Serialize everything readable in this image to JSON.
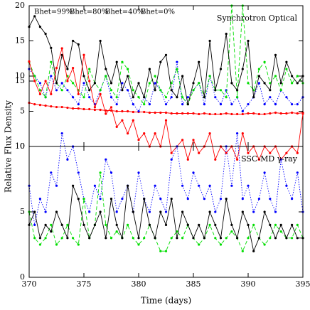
{
  "chart_data": [
    {
      "type": "line",
      "title": "Synchrotron Optical",
      "x": [
        370,
        370.5,
        371,
        371.5,
        372,
        372.5,
        373,
        373.5,
        374,
        374.5,
        375,
        375.5,
        376,
        376.5,
        377,
        377.5,
        378,
        378.5,
        379,
        379.5,
        380,
        380.5,
        381,
        381.5,
        382,
        382.5,
        383,
        383.5,
        384,
        384.5,
        385,
        385.5,
        386,
        386.5,
        387,
        387.5,
        388,
        388.5,
        389,
        389.5,
        390,
        390.5,
        391,
        391.5,
        392,
        392.5,
        393,
        393.5,
        394,
        394.5,
        395
      ],
      "series": [
        {
          "name": "Bhet=99%",
          "color": "#ff0000",
          "dash": "solid",
          "values": [
            6.2,
            6.0,
            5.9,
            5.8,
            5.7,
            5.6,
            5.6,
            5.5,
            5.4,
            5.4,
            5.3,
            5.3,
            5.2,
            5.2,
            5.1,
            5.1,
            5.0,
            5.0,
            5.0,
            4.9,
            4.9,
            4.9,
            4.8,
            4.8,
            4.8,
            4.8,
            4.7,
            4.7,
            4.7,
            4.7,
            4.7,
            4.6,
            4.7,
            4.6,
            4.6,
            4.6,
            4.7,
            4.6,
            4.6,
            4.6,
            4.7,
            4.7,
            4.6,
            4.6,
            4.7,
            4.8,
            4.7,
            4.7,
            4.8,
            4.7,
            4.8
          ]
        },
        {
          "name": "Bhet=80%",
          "color": "#0000ff",
          "dash": "dotted",
          "values": [
            11,
            10,
            9,
            7,
            10,
            8,
            9,
            8,
            7,
            6,
            9,
            7,
            6,
            8,
            10,
            7,
            6,
            9,
            8,
            6,
            5,
            7,
            6,
            9,
            8,
            6,
            7,
            12,
            6,
            7,
            8,
            9,
            6,
            10,
            7,
            6,
            8,
            6,
            7,
            5,
            6,
            7,
            9,
            6,
            7,
            6,
            8,
            7,
            6,
            6,
            7
          ]
        },
        {
          "name": "Bhet=40%",
          "color": "#00dd00",
          "dash": "dashed",
          "values": [
            12,
            10,
            8,
            7,
            12,
            9,
            8,
            10,
            9,
            8,
            7,
            11,
            9,
            8,
            10,
            8,
            7,
            12,
            11,
            8,
            7,
            6,
            9,
            10,
            8,
            7,
            9,
            11,
            7,
            6,
            8,
            9,
            7,
            10,
            8,
            8,
            7,
            20,
            7,
            20,
            9,
            8,
            11,
            12,
            9,
            10,
            8,
            11,
            9,
            10,
            9
          ]
        },
        {
          "name": "Bhet=0%",
          "color": "#000000",
          "dash": "solid",
          "values": [
            17,
            18.5,
            17,
            16,
            14,
            9,
            13,
            11,
            15,
            14.5,
            10,
            8,
            9,
            15,
            11,
            9,
            12,
            8,
            10,
            7,
            9,
            7,
            11,
            8,
            12,
            13,
            8,
            7,
            10,
            6,
            9,
            12,
            7,
            15,
            8,
            11,
            16,
            9,
            8,
            11,
            15,
            7,
            10,
            9,
            8,
            13,
            9,
            12,
            10,
            9,
            10
          ]
        }
      ],
      "xlim": [
        370,
        395
      ],
      "xticks": [
        370,
        375,
        380,
        385,
        390,
        395
      ],
      "ylim": [
        0,
        20
      ],
      "yticks": [
        0,
        5,
        10,
        15,
        20
      ]
    },
    {
      "type": "line",
      "title": "SSC-MD γ-ray",
      "x_label": "Time (days)",
      "y_label": "Relative Flux Density",
      "x": [
        370,
        370.5,
        371,
        371.5,
        372,
        372.5,
        373,
        373.5,
        374,
        374.5,
        375,
        375.5,
        376,
        376.5,
        377,
        377.5,
        378,
        378.5,
        379,
        379.5,
        380,
        380.5,
        381,
        381.5,
        382,
        382.5,
        383,
        383.5,
        384,
        384.5,
        385,
        385.5,
        386,
        386.5,
        387,
        387.5,
        388,
        388.5,
        389,
        389.5,
        390,
        390.5,
        391,
        391.5,
        392,
        392.5,
        393,
        393.5,
        394,
        394.5,
        395
      ],
      "series": [
        {
          "color": "#ff0000",
          "dash": "solid",
          "values": [
            16.5,
            15,
            14,
            15,
            14,
            16,
            17.5,
            15,
            16,
            14,
            17,
            15,
            13,
            14,
            12.5,
            13,
            11.5,
            12,
            11,
            12,
            10.5,
            11,
            10,
            11,
            10,
            12,
            9.5,
            10,
            10.5,
            9,
            10.5,
            9.5,
            10,
            11,
            9,
            10,
            9.5,
            10,
            9,
            11,
            9.5,
            10,
            9,
            10,
            9.5,
            10,
            9,
            9.5,
            10,
            9.5,
            12.5
          ]
        },
        {
          "color": "#0000ff",
          "dash": "dotted",
          "values": [
            7,
            4,
            6,
            5,
            8,
            7,
            11,
            9,
            10,
            8,
            6,
            5,
            7,
            6,
            9,
            8,
            5,
            6,
            7,
            5,
            8,
            6,
            5,
            7,
            6,
            5,
            9,
            10,
            7,
            6,
            8,
            7,
            6,
            7,
            5,
            6,
            10,
            7,
            11,
            6,
            7,
            5,
            6,
            8,
            6,
            5,
            9,
            7,
            6,
            8,
            5
          ]
        },
        {
          "color": "#00dd00",
          "dash": "dashed",
          "values": [
            5,
            3,
            2.5,
            3,
            4,
            2.5,
            3,
            4,
            3,
            2.5,
            6,
            3,
            4,
            8,
            4,
            3,
            3.5,
            3,
            4,
            3,
            2.5,
            3,
            4,
            3,
            2,
            2,
            3,
            3.5,
            3,
            4,
            3,
            2.5,
            3,
            4,
            3,
            2.5,
            3,
            3.5,
            3,
            2,
            3,
            4,
            3,
            2.5,
            3,
            4,
            3.5,
            3,
            3,
            4,
            3
          ]
        },
        {
          "color": "#000000",
          "dash": "solid",
          "values": [
            4,
            5,
            3,
            4,
            3.5,
            5,
            4,
            3,
            7,
            6,
            4,
            3,
            4,
            5,
            3,
            6,
            4,
            3,
            7,
            5,
            3,
            6,
            4,
            3,
            5,
            4,
            6,
            3,
            5,
            4,
            3,
            4,
            3,
            5,
            4,
            3,
            6,
            4,
            3,
            5,
            4,
            2,
            3,
            5,
            4,
            3,
            4,
            3,
            4,
            3,
            3
          ]
        }
      ],
      "xlim": [
        370,
        395
      ],
      "xticks": [
        370,
        375,
        380,
        385,
        390,
        395
      ],
      "ylim": [
        0,
        20
      ],
      "yticks": [
        0,
        5,
        10,
        15
      ]
    }
  ]
}
